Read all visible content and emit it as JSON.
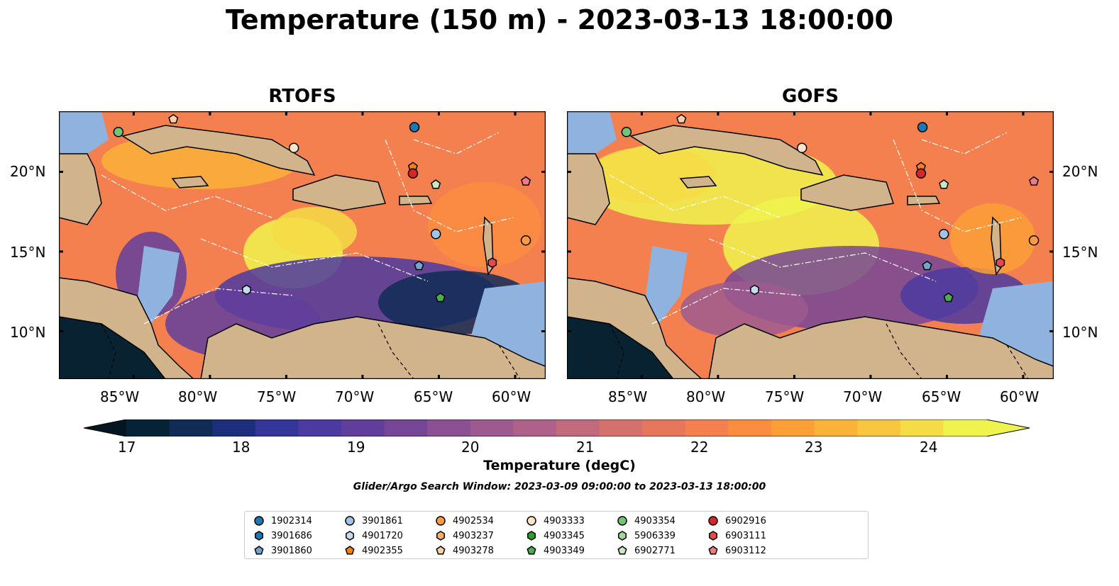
{
  "title": "Temperature (150 m) - 2023-03-13 18:00:00",
  "panels": [
    {
      "title": "RTOFS"
    },
    {
      "title": "GOFS"
    }
  ],
  "axes": {
    "lon_ticks": [
      "85°W",
      "80°W",
      "75°W",
      "70°W",
      "65°W",
      "60°W"
    ],
    "lat_ticks": [
      "20°N",
      "15°N",
      "10°N"
    ]
  },
  "colorbar": {
    "label": "Temperature (degC)",
    "ticks": [
      "17",
      "18",
      "19",
      "20",
      "21",
      "22",
      "23",
      "24"
    ],
    "colors": [
      "#062235",
      "#0f2b56",
      "#1d2e7c",
      "#35369a",
      "#4c3aa0",
      "#613e9c",
      "#764796",
      "#8b5092",
      "#9d5a8e",
      "#b0618a",
      "#c26a7e",
      "#d5716d",
      "#e6765c",
      "#f4804f",
      "#fb8d3f",
      "#fb9f36",
      "#fab238",
      "#f8c63e",
      "#f5dc45",
      "#eef44d"
    ],
    "under_color": "#041622",
    "over_color": "#eef44d"
  },
  "subtitle": "Glider/Argo Search Window: 2023-03-09 09:00:00 to 2023-03-13 18:00:00",
  "map_colors": {
    "land": "#d2b48c",
    "shallow": "#8fb3de",
    "deep": "#082231"
  },
  "legend": {
    "items": [
      {
        "label": "1902314",
        "color": "#1f77b4",
        "marker": "circle"
      },
      {
        "label": "3901686",
        "color": "#1f77b4",
        "marker": "hexagon"
      },
      {
        "label": "3901860",
        "color": "#6fa6d6",
        "marker": "pentagon"
      },
      {
        "label": "3901861",
        "color": "#9ec5e8",
        "marker": "circle"
      },
      {
        "label": "4901720",
        "color": "#c6dbef",
        "marker": "hexagon"
      },
      {
        "label": "4902355",
        "color": "#ff7f0e",
        "marker": "pentagon"
      },
      {
        "label": "4902534",
        "color": "#fd9a44",
        "marker": "circle"
      },
      {
        "label": "4903237",
        "color": "#fdae6b",
        "marker": "hexagon"
      },
      {
        "label": "4903278",
        "color": "#fdd0a2",
        "marker": "pentagon"
      },
      {
        "label": "4903333",
        "color": "#fde3c8",
        "marker": "circle"
      },
      {
        "label": "4903345",
        "color": "#2ca02c",
        "marker": "hexagon"
      },
      {
        "label": "4903349",
        "color": "#4caf4c",
        "marker": "pentagon"
      },
      {
        "label": "4903354",
        "color": "#74c476",
        "marker": "circle"
      },
      {
        "label": "5906339",
        "color": "#a1d99b",
        "marker": "hexagon"
      },
      {
        "label": "6902771",
        "color": "#c7e9c0",
        "marker": "pentagon"
      },
      {
        "label": "6902916",
        "color": "#d62728",
        "marker": "circle"
      },
      {
        "label": "6903111",
        "color": "#e34a4a",
        "marker": "hexagon"
      },
      {
        "label": "6903112",
        "color": "#f07a82",
        "marker": "pentagon"
      }
    ]
  },
  "floats": [
    {
      "id": "1902314",
      "lon": -66.6,
      "lat": 22.8
    },
    {
      "id": "4903354",
      "lon": -86.0,
      "lat": 22.5
    },
    {
      "id": "4903278",
      "lon": -82.4,
      "lat": 23.3
    },
    {
      "id": "4903333",
      "lon": -74.5,
      "lat": 21.5
    },
    {
      "id": "4902355",
      "lon": -66.7,
      "lat": 20.3
    },
    {
      "id": "6902916",
      "lon": -66.7,
      "lat": 19.9
    },
    {
      "id": "6902771",
      "lon": -65.2,
      "lat": 19.2
    },
    {
      "id": "6903112",
      "lon": -59.3,
      "lat": 19.4
    },
    {
      "id": "3901861",
      "lon": -65.2,
      "lat": 16.1
    },
    {
      "id": "4902534",
      "lon": -59.3,
      "lat": 15.7
    },
    {
      "id": "6903111",
      "lon": -61.5,
      "lat": 14.3
    },
    {
      "id": "3901860",
      "lon": -66.3,
      "lat": 14.1
    },
    {
      "id": "4901720",
      "lon": -77.6,
      "lat": 12.6
    },
    {
      "id": "4903349",
      "lon": -64.9,
      "lat": 12.1
    }
  ]
}
